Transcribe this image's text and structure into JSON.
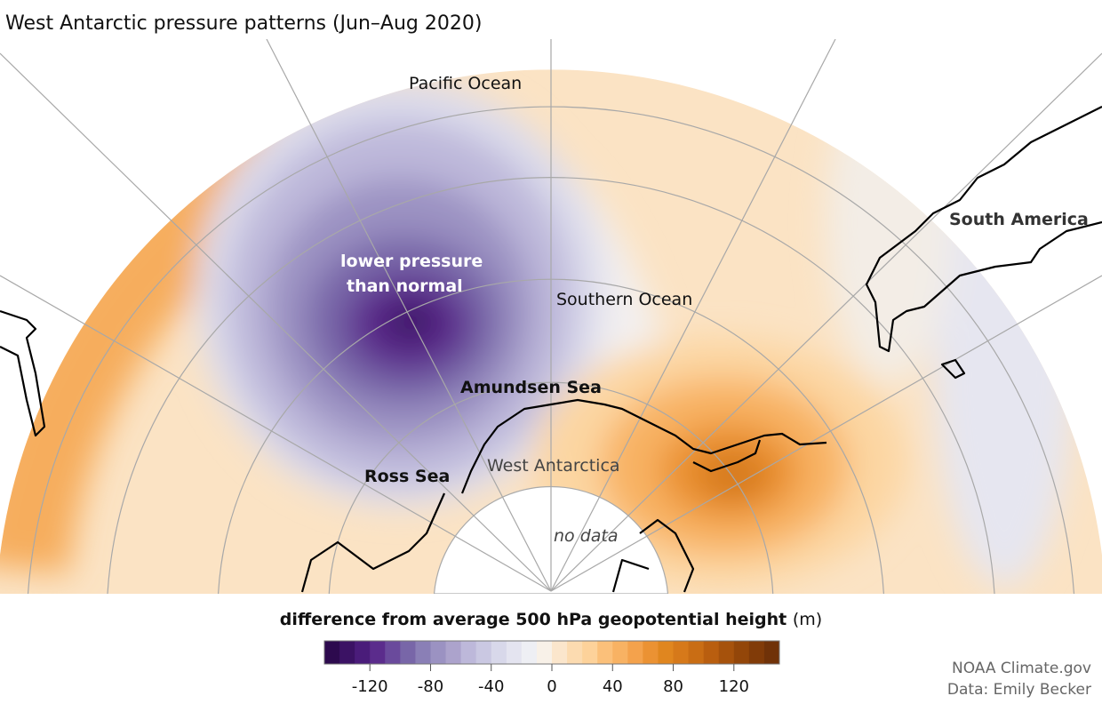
{
  "title": "West Antarctic pressure patterns (Jun–Aug 2020)",
  "labels": {
    "pacific": "Pacific Ocean",
    "south_america": "South America",
    "low_line1": "lower pressure",
    "low_line2": "than normal",
    "southern_ocean": "Southern Ocean",
    "amundsen": "Amundsen Sea",
    "ross": "Ross Sea",
    "west_antarctica": "West Antarctica",
    "no_data": "no data"
  },
  "legend": {
    "title": "difference from average 500 hPa geopotential height",
    "unit": "(m)",
    "range": [
      -150,
      150
    ],
    "step": 10,
    "ticks": [
      "-120",
      "-80",
      "-40",
      "0",
      "40",
      "80",
      "120"
    ],
    "tick_values": [
      -120,
      -80,
      -40,
      0,
      40,
      80,
      120
    ],
    "colors": [
      "#2d0a4e",
      "#3b1264",
      "#4a1c7a",
      "#5b2c8c",
      "#6a4a9c",
      "#7866a8",
      "#8a7fb6",
      "#9b92c2",
      "#aca3cc",
      "#bdb8da",
      "#cac8e2",
      "#d8d8ea",
      "#e4e4f0",
      "#eeeff4",
      "#f8f1e8",
      "#fbe6cc",
      "#fcdbb0",
      "#fdd29a",
      "#fbc07a",
      "#f8b263",
      "#f4a24c",
      "#eb9233",
      "#e0861f",
      "#d6791a",
      "#c96d14",
      "#b95e0f",
      "#a6520c",
      "#934609",
      "#813b08",
      "#703208"
    ]
  },
  "credits": {
    "line1": "NOAA Climate.gov",
    "line2": "Data: Emily Becker"
  }
}
